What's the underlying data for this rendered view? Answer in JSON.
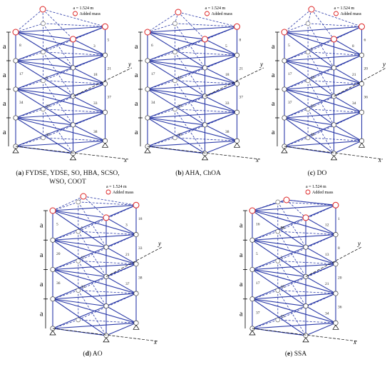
{
  "common": {
    "spacing_label": "a = 1.524 m",
    "added_mass_label": "Added mass",
    "dimension_letter": "a",
    "axis_x": "x",
    "axis_y": "y"
  },
  "panels": [
    {
      "id": "a",
      "letter": "a",
      "caption": "FYDSE, YDSE, SO, HBA, SCSO,",
      "caption2": "WSO, COOT",
      "members": [
        "1",
        "3",
        "8",
        "5",
        "6",
        "18",
        "17",
        "21",
        "20",
        "33",
        "34",
        "37",
        "36",
        "38"
      ]
    },
    {
      "id": "b",
      "letter": "b",
      "caption": "AHA, ChOA",
      "caption2": "",
      "members": [
        "1",
        "5",
        "6",
        "8",
        "14",
        "18",
        "17",
        "21",
        "20",
        "33",
        "34",
        "37",
        "36",
        "38"
      ]
    },
    {
      "id": "c",
      "letter": "c",
      "caption": "DO",
      "caption2": "",
      "members": [
        "1",
        "8",
        "5",
        "6",
        "18",
        "21",
        "17",
        "20",
        "33",
        "34",
        "37",
        "36",
        "38"
      ]
    },
    {
      "id": "d",
      "letter": "d",
      "caption": "AO",
      "caption2": "",
      "members": [
        "1",
        "3",
        "5",
        "18",
        "17",
        "21",
        "20",
        "33",
        "34",
        "37",
        "36",
        "38"
      ]
    },
    {
      "id": "e",
      "letter": "e",
      "caption": "SSA",
      "caption2": "",
      "members": [
        "14",
        "12",
        "16",
        "1",
        "3",
        "13",
        "5",
        "8",
        "18",
        "21",
        "17",
        "20",
        "33",
        "34",
        "37",
        "36",
        "38"
      ]
    }
  ]
}
